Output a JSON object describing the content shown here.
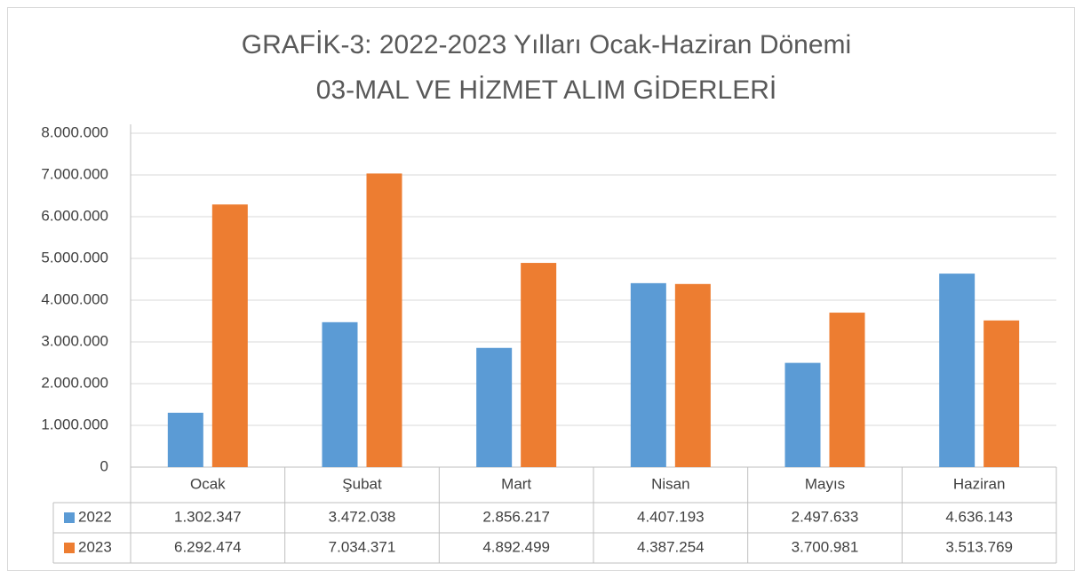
{
  "chart_data": {
    "type": "bar",
    "title": "GRAFİK-3: 2022-2023 Yılları Ocak-Haziran Dönemi",
    "subtitle": "03-MAL VE HİZMET ALIM GİDERLERİ",
    "categories": [
      "Ocak",
      "Şubat",
      "Mart",
      "Nisan",
      "Mayıs",
      "Haziran"
    ],
    "series": [
      {
        "name": "2022",
        "color": "#5b9bd5",
        "values": [
          1302347,
          3472038,
          2856217,
          4407193,
          2497633,
          4636143
        ],
        "value_labels": [
          "1.302.347",
          "3.472.038",
          "2.856.217",
          "4.407.193",
          "2.497.633",
          "4.636.143"
        ]
      },
      {
        "name": "2023",
        "color": "#ed7d31",
        "values": [
          6292474,
          7034371,
          4892499,
          4387254,
          3700981,
          3513769
        ],
        "value_labels": [
          "6.292.474",
          "7.034.371",
          "4.892.499",
          "4.387.254",
          "3.700.981",
          "3.513.769"
        ]
      }
    ],
    "ylim": [
      0,
      8000000
    ],
    "yticks": [
      0,
      {
        "value": 1000000,
        "label": "1.000.000"
      },
      {
        "value": 2000000,
        "label": "2.000.000"
      },
      {
        "value": 3000000,
        "label": "3.000.000"
      },
      {
        "value": 4000000,
        "label": "4.000.000"
      },
      {
        "value": 5000000,
        "label": "5.000.000"
      },
      {
        "value": 6000000,
        "label": "6.000.000"
      },
      {
        "value": 7000000,
        "label": "7.000.000"
      },
      {
        "value": 8000000,
        "label": "8.000.000"
      }
    ],
    "grid": true
  }
}
